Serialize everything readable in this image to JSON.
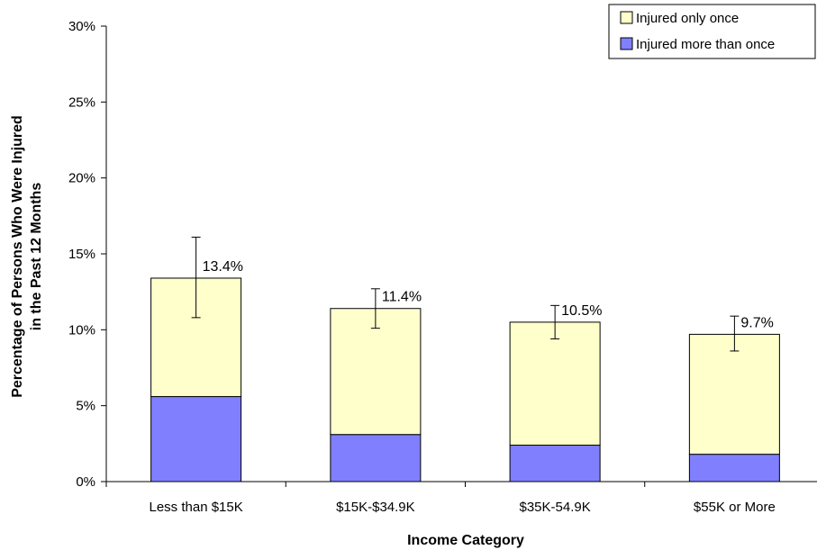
{
  "chart_data": {
    "type": "bar",
    "stacked": true,
    "categories": [
      "Less than $15K",
      "$15K-$34.9K",
      "$35K-54.9K",
      "$55K or More"
    ],
    "series": [
      {
        "name": "Injured more than once",
        "values": [
          5.6,
          3.1,
          2.4,
          1.8
        ],
        "color": "#8080ff"
      },
      {
        "name": "Injured only once",
        "values": [
          7.8,
          8.3,
          8.1,
          7.9
        ],
        "color": "#ffffcc"
      }
    ],
    "totals": [
      13.4,
      11.4,
      10.5,
      9.7
    ],
    "total_labels": [
      "13.4%",
      "11.4%",
      "10.5%",
      "9.7%"
    ],
    "error_bars": [
      {
        "low": 10.8,
        "high": 16.1
      },
      {
        "low": 10.1,
        "high": 12.7
      },
      {
        "low": 9.4,
        "high": 11.6
      },
      {
        "low": 8.6,
        "high": 10.9
      }
    ],
    "xlabel": "Income Category",
    "ylabel_lines": [
      "Percentage of Persons Who Were Injured",
      "in the Past 12 Months"
    ],
    "ylim": [
      0,
      30
    ],
    "yticks": [
      0,
      5,
      10,
      15,
      20,
      25,
      30
    ],
    "ytick_labels": [
      "0%",
      "5%",
      "10%",
      "15%",
      "20%",
      "25%",
      "30%"
    ],
    "legend": {
      "position": "top-right",
      "entries": [
        "Injured only once",
        "Injured more than once"
      ]
    },
    "grid": false
  }
}
